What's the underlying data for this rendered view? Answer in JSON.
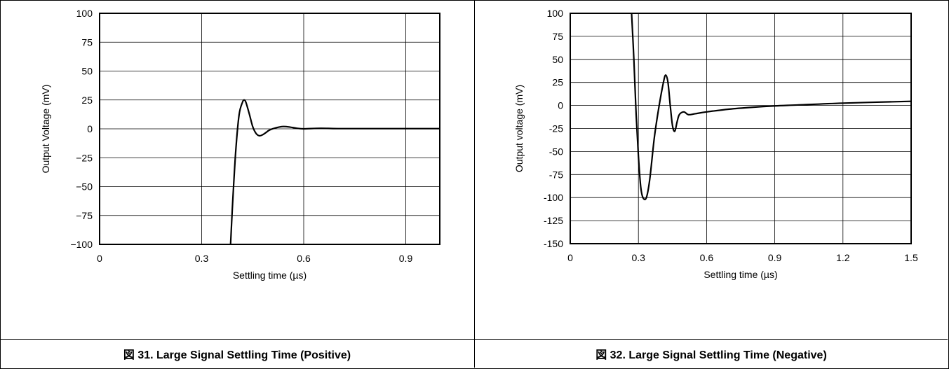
{
  "chart_data": [
    {
      "type": "line",
      "caption": "図 31. Large Signal Settling Time (Positive)",
      "xlabel": "Settling time (µs)",
      "ylabel": "Output Voltage (mV)",
      "xlim": [
        0,
        1.0
      ],
      "ylim": [
        -100,
        100
      ],
      "xticks": [
        0,
        0.3,
        0.6,
        0.9
      ],
      "xtick_labels": [
        "0",
        "0.3",
        "0.6",
        "0.9"
      ],
      "yticks": [
        100,
        75,
        50,
        25,
        0,
        -25,
        -50,
        -75,
        -100
      ],
      "ytick_labels": [
        "100",
        "75",
        "50",
        "25",
        "0",
        "−25",
        "−50",
        "−75",
        "−100"
      ],
      "grid": true,
      "series": [
        {
          "x": [
            0.385,
            0.39,
            0.4,
            0.41,
            0.42,
            0.425,
            0.43,
            0.44,
            0.45,
            0.46,
            0.47,
            0.48,
            0.49,
            0.5,
            0.52,
            0.54,
            0.56,
            0.58,
            0.6,
            0.65,
            0.7,
            0.8,
            0.9,
            1.0
          ],
          "y": [
            -100,
            -70,
            -20,
            12,
            23,
            25,
            23,
            13,
            2,
            -4,
            -6,
            -5,
            -3,
            -1,
            1,
            2,
            1.5,
            0.5,
            0,
            0.5,
            0.2,
            0.2,
            0.2,
            0.2
          ]
        }
      ]
    },
    {
      "type": "line",
      "caption": "図 32. Large Signal Settling Time (Negative)",
      "xlabel": "Settling time (µs)",
      "ylabel": "Output voltage (mV)",
      "xlim": [
        0,
        1.5
      ],
      "ylim": [
        -150,
        100
      ],
      "xticks": [
        0,
        0.3,
        0.6,
        0.9,
        1.2,
        1.5
      ],
      "xtick_labels": [
        "0",
        "0.3",
        "0.6",
        "0.9",
        "1.2",
        "1.5"
      ],
      "yticks": [
        100,
        75,
        50,
        25,
        0,
        -25,
        -50,
        -75,
        -100,
        -125,
        -150
      ],
      "ytick_labels": [
        "100",
        "75",
        "50",
        "25",
        "0",
        "-25",
        "-50",
        "-75",
        "-100",
        "-125",
        "-150"
      ],
      "grid": true,
      "series": [
        {
          "x": [
            0.27,
            0.28,
            0.29,
            0.3,
            0.31,
            0.32,
            0.335,
            0.35,
            0.37,
            0.39,
            0.41,
            0.42,
            0.43,
            0.44,
            0.45,
            0.46,
            0.47,
            0.48,
            0.5,
            0.52,
            0.55,
            0.6,
            0.7,
            0.8,
            0.9,
            1.0,
            1.2,
            1.5
          ],
          "y": [
            100,
            50,
            -10,
            -55,
            -88,
            -100,
            -100,
            -80,
            -35,
            -2,
            25,
            33,
            25,
            0,
            -22,
            -28,
            -18,
            -10,
            -7,
            -10,
            -9,
            -7,
            -4,
            -2,
            -0.5,
            0.5,
            2.5,
            4.5
          ]
        }
      ]
    }
  ]
}
